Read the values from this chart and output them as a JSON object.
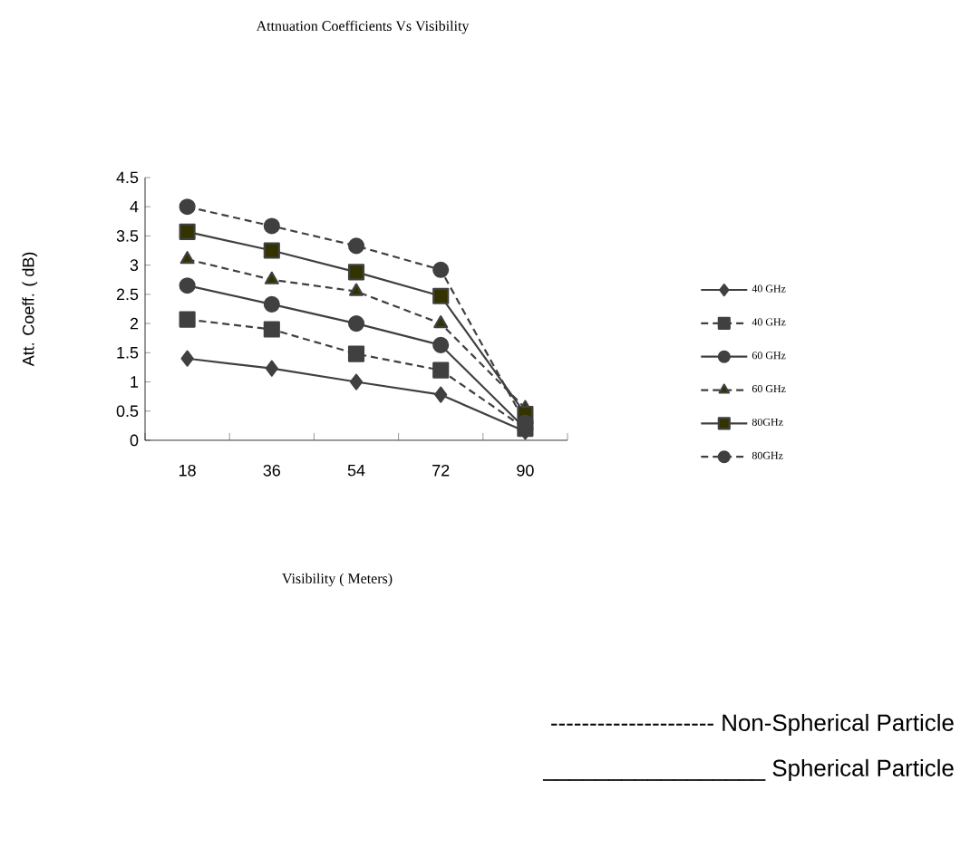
{
  "chart_data": {
    "type": "line",
    "title": "Attnuation Coefficients Vs Visibility",
    "ylabel": "Att. Coeff. ( dB)",
    "categories": [
      "18",
      "36",
      "54",
      "72",
      "90"
    ],
    "ylim": [
      0,
      4.5
    ],
    "yticks": [
      0,
      0.5,
      1,
      1.5,
      2,
      2.5,
      3,
      3.5,
      4,
      4.5
    ],
    "grid": false,
    "legend": "right",
    "series": [
      {
        "name": "40 GHz",
        "color": "#404040",
        "line_style": "solid",
        "marker": "diamond",
        "values": [
          1.4,
          1.23,
          1.0,
          0.78,
          0.15
        ]
      },
      {
        "name": "40 GHz",
        "color": "#404040",
        "line_style": "dashed",
        "marker": "square",
        "values": [
          2.07,
          1.9,
          1.48,
          1.2,
          0.2
        ]
      },
      {
        "name": "60 GHz",
        "color": "#404040",
        "line_style": "solid",
        "marker": "circle",
        "values": [
          2.65,
          2.33,
          2.0,
          1.63,
          0.2
        ]
      },
      {
        "name": "60 GHz",
        "color": "#333300",
        "line_style": "dashed",
        "marker": "triangle",
        "values": [
          3.1,
          2.75,
          2.55,
          2.0,
          0.55
        ]
      },
      {
        "name": "80GHz",
        "color": "#333300",
        "line_style": "solid",
        "marker": "square",
        "values": [
          3.57,
          3.25,
          2.88,
          2.47,
          0.45
        ]
      },
      {
        "name": "80GHz",
        "color": "#404040",
        "line_style": "dashed",
        "marker": "circle",
        "values": [
          4.0,
          3.67,
          3.33,
          2.92,
          0.3
        ]
      }
    ],
    "annotations": [
      "Visibility ( Meters)",
      "--------------------- Non-Spherical Particle",
      "_________________ Spherical Particle"
    ]
  }
}
